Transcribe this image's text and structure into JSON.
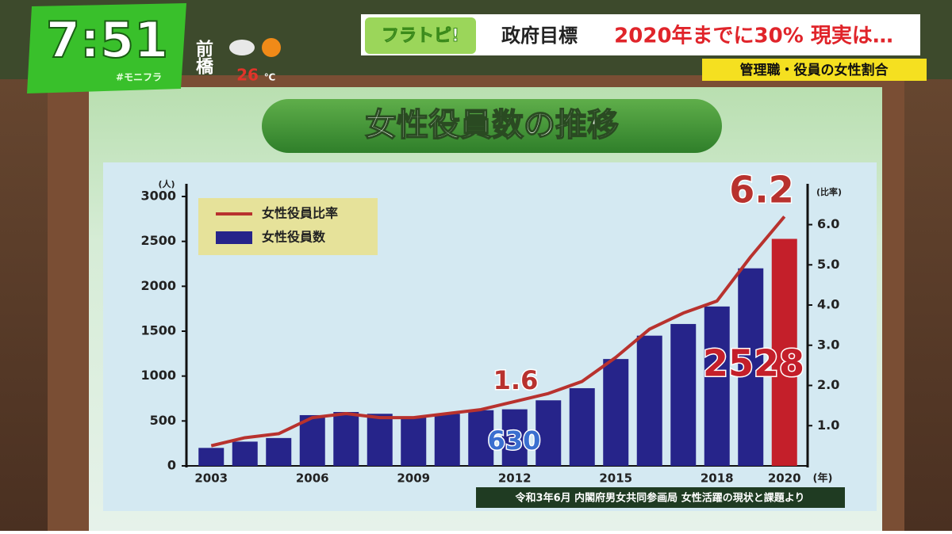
{
  "overlay": {
    "time": "7:51",
    "hashtag": "#モニフラ",
    "city": "前橋",
    "temperature": "26",
    "temperature_unit": "℃",
    "logo": "フラトピ!",
    "headline_left": "政府目標",
    "headline_right": "2020年までに30% 現実は…",
    "subheadline": "管理職・役員の女性割合"
  },
  "chart_data": {
    "type": "bar_line",
    "title": "女性役員数の推移",
    "categories": [
      "2003",
      null,
      null,
      "2006",
      null,
      null,
      "2009",
      null,
      null,
      "2012",
      null,
      null,
      "2015",
      null,
      null,
      "2018",
      null,
      "2020"
    ],
    "x_unit": "(年)",
    "y_label": "(人)",
    "y2_label": "(比率)",
    "series": [
      {
        "name": "女性役員数",
        "type": "bar",
        "color": "#26248a",
        "highlight_color": "#c41f2a",
        "highlight_index": 17,
        "values": [
          200,
          270,
          310,
          565,
          600,
          580,
          540,
          580,
          620,
          630,
          730,
          865,
          1190,
          1450,
          1580,
          1775,
          2200,
          2528
        ]
      },
      {
        "name": "女性役員比率",
        "type": "line",
        "axis": "y2",
        "color": "#b8322e",
        "values": [
          0.5,
          0.7,
          0.8,
          1.2,
          1.3,
          1.2,
          1.2,
          1.3,
          1.4,
          1.6,
          1.8,
          2.1,
          2.7,
          3.4,
          3.8,
          4.1,
          5.2,
          6.2
        ]
      }
    ],
    "ylim": [
      0,
      3000
    ],
    "yticks": [
      0,
      500,
      1000,
      1500,
      2000,
      2500,
      3000
    ],
    "y2lim": [
      0,
      6.7
    ],
    "y2ticks": [
      {
        "value": 1,
        "label": "1.0"
      },
      {
        "value": 2,
        "label": "2.0"
      },
      {
        "value": 3,
        "label": "3.0"
      },
      {
        "value": 4,
        "label": "4.0"
      },
      {
        "value": 5,
        "label": "5.0"
      },
      {
        "value": 6,
        "label": "6.0"
      }
    ],
    "legend": "upper left",
    "grid": false,
    "source": "令和3年6月 内閣府男女共同参画局 女性活躍の現状と課題より"
  }
}
